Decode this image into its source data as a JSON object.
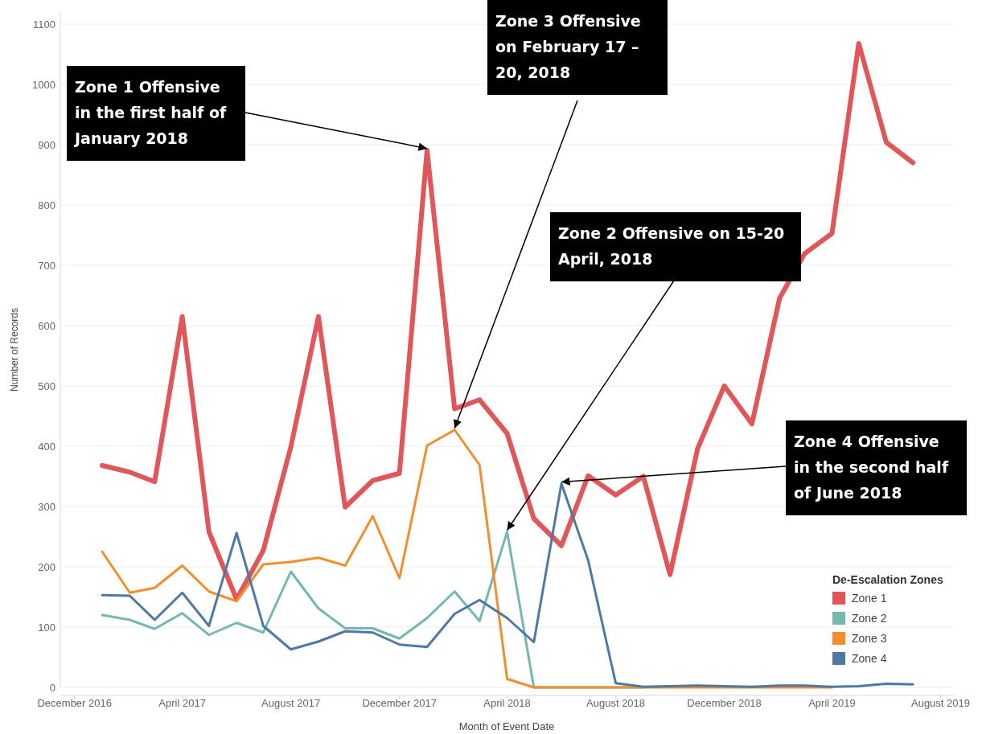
{
  "chart_data": {
    "type": "line",
    "xlabel": "Month of Event Date",
    "ylabel": "Number of Records",
    "legend_title": "De-Escalation Zones",
    "legend": "bottom right",
    "grid": "y",
    "x": [
      "2017-01",
      "2017-02",
      "2017-03",
      "2017-04",
      "2017-05",
      "2017-06",
      "2017-07",
      "2017-08",
      "2017-09",
      "2017-10",
      "2017-11",
      "2017-12",
      "2018-01",
      "2018-02",
      "2018-03",
      "2018-04",
      "2018-05",
      "2018-06",
      "2018-07",
      "2018-08",
      "2018-09",
      "2018-10",
      "2018-11",
      "2018-12",
      "2019-01",
      "2019-02",
      "2019-03",
      "2019-04",
      "2019-05",
      "2019-06",
      "2019-07"
    ],
    "series": [
      {
        "name": "Zone 1",
        "color": "#e15759",
        "values": [
          368,
          357,
          341,
          615,
          258,
          146,
          227,
          399,
          615,
          299,
          343,
          355,
          891,
          462,
          477,
          421,
          280,
          235,
          351,
          319,
          350,
          187,
          396,
          500,
          437,
          645,
          719,
          753,
          1068,
          904,
          870
        ]
      },
      {
        "name": "Zone 2",
        "color": "#76b7b2",
        "values": [
          120,
          112,
          97,
          123,
          87,
          107,
          91,
          192,
          131,
          98,
          98,
          81,
          115,
          159,
          110,
          258,
          0,
          0,
          0,
          0,
          0,
          null,
          null,
          null,
          null,
          null,
          null,
          null,
          null,
          null,
          null
        ]
      },
      {
        "name": "Zone 3",
        "color": "#f28e2b",
        "values": [
          225,
          157,
          165,
          202,
          159,
          143,
          204,
          208,
          215,
          202,
          284,
          181,
          401,
          427,
          369,
          14,
          0,
          0,
          0,
          0,
          0,
          0,
          0,
          0,
          0,
          0,
          0,
          0,
          null,
          null,
          null
        ]
      },
      {
        "name": "Zone 4",
        "color": "#4e79a7",
        "values": [
          153,
          152,
          112,
          157,
          102,
          256,
          102,
          63,
          76,
          93,
          91,
          71,
          67,
          122,
          145,
          115,
          75,
          338,
          211,
          7,
          1,
          2,
          3,
          2,
          1,
          3,
          3,
          1,
          2,
          6,
          5
        ]
      }
    ],
    "xlim": [
      "2016-11-15",
      "2019-08-15"
    ],
    "xticks": [
      {
        "value": "2016-12",
        "label": "December 2016"
      },
      {
        "value": "2017-04",
        "label": "April 2017"
      },
      {
        "value": "2017-08",
        "label": "August 2017"
      },
      {
        "value": "2017-12",
        "label": "December 2017"
      },
      {
        "value": "2018-04",
        "label": "April 2018"
      },
      {
        "value": "2018-08",
        "label": "August 2018"
      },
      {
        "value": "2018-12",
        "label": "December 2018"
      },
      {
        "value": "2019-04",
        "label": "April 2019"
      },
      {
        "value": "2019-08",
        "label": "August 2019"
      }
    ],
    "ylim": [
      0,
      1120
    ],
    "yticks": [
      0,
      100,
      200,
      300,
      400,
      500,
      600,
      700,
      800,
      900,
      1000,
      1100
    ],
    "annotations": [
      {
        "text": "Zone 1 Offensive in the first half of January 2018",
        "x": "2018-01",
        "y": 891
      },
      {
        "text": "Zone 3 Offensive on February 17 – 20, 2018",
        "x": "2018-02",
        "y": 427
      },
      {
        "text": "Zone 2 Offensive on 15-20 April, 2018",
        "x": "2018-04",
        "y": 258
      },
      {
        "text": "Zone 4 Offensive in the second half of June 2018",
        "x": "2018-06",
        "y": 338
      }
    ]
  }
}
